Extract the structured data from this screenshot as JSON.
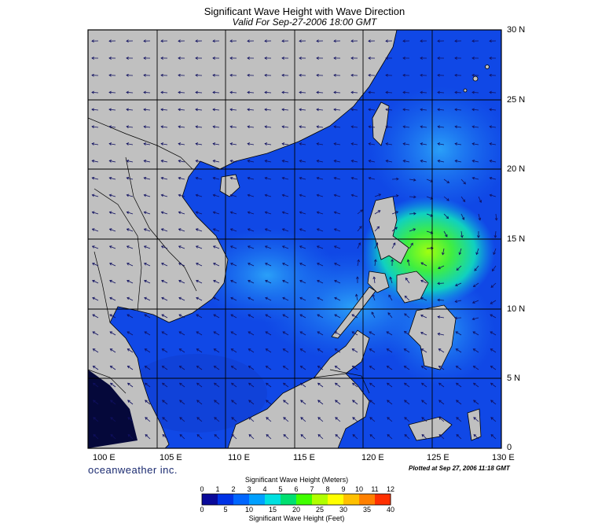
{
  "title": "Significant Wave Height with Wave Direction",
  "subtitle": "Valid For Sep-27-2006 18:00 GMT",
  "lon_labels": [
    "100 E",
    "105 E",
    "110 E",
    "115 E",
    "120 E",
    "125 E",
    "130 E"
  ],
  "lat_labels": [
    "30 N",
    "25 N",
    "20 N",
    "15 N",
    "10 N",
    "5 N",
    "0"
  ],
  "brand": "oceanweather inc.",
  "plotted_note": "Plotted at Sep 27, 2006 11:18 GMT",
  "colorbar": {
    "meters_label": "Significant Wave Height (Meters)",
    "feet_label": "Significant Wave Height (Feet)",
    "meters_ticks": [
      "0",
      "1",
      "2",
      "3",
      "4",
      "5",
      "6",
      "7",
      "8",
      "9",
      "10",
      "11",
      "12"
    ],
    "feet_ticks": [
      "0",
      "5",
      "10",
      "15",
      "20",
      "25",
      "30",
      "35",
      "40"
    ],
    "colors": [
      "#0a0a9a",
      "#0033e6",
      "#0066ff",
      "#00a0ff",
      "#00e0e0",
      "#00e070",
      "#40ff00",
      "#b0ff00",
      "#ffff00",
      "#ffc000",
      "#ff8000",
      "#ff3000"
    ]
  },
  "colors": {
    "land": "#c0c0c0",
    "grid": "#000000",
    "sea_low": "#1040e0",
    "sea_mid": "#1a78f0",
    "peak": "#80ff20"
  }
}
